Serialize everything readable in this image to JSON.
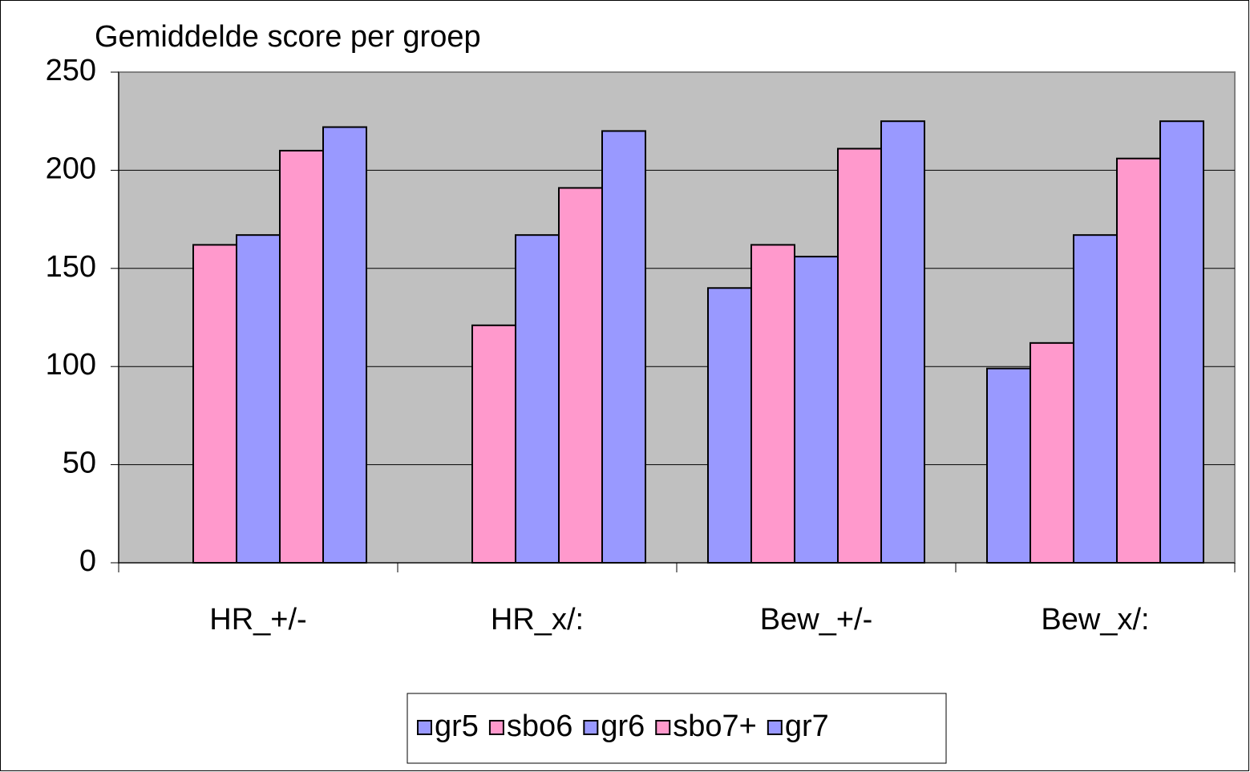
{
  "chart_data": {
    "type": "bar",
    "title": "Gemiddelde score per groep",
    "categories": [
      "HR_+/-",
      "HR_x/:",
      "Bew_+/-",
      "Bew_x/:"
    ],
    "series": [
      {
        "name": "gr5",
        "color": "#9999ff",
        "values": [
          null,
          null,
          140,
          99
        ]
      },
      {
        "name": "sbo6",
        "color": "#ff99cc",
        "values": [
          162,
          121,
          162,
          112
        ]
      },
      {
        "name": "gr6",
        "color": "#9999ff",
        "values": [
          167,
          167,
          156,
          167
        ]
      },
      {
        "name": "sbo7+",
        "color": "#ff99cc",
        "values": [
          210,
          191,
          211,
          206
        ]
      },
      {
        "name": "gr7",
        "color": "#9999ff",
        "values": [
          222,
          220,
          225,
          225
        ]
      }
    ],
    "ylim": [
      0,
      250
    ],
    "yticks": [
      0,
      50,
      100,
      150,
      200,
      250
    ],
    "grid": true,
    "legend": "bottom"
  }
}
